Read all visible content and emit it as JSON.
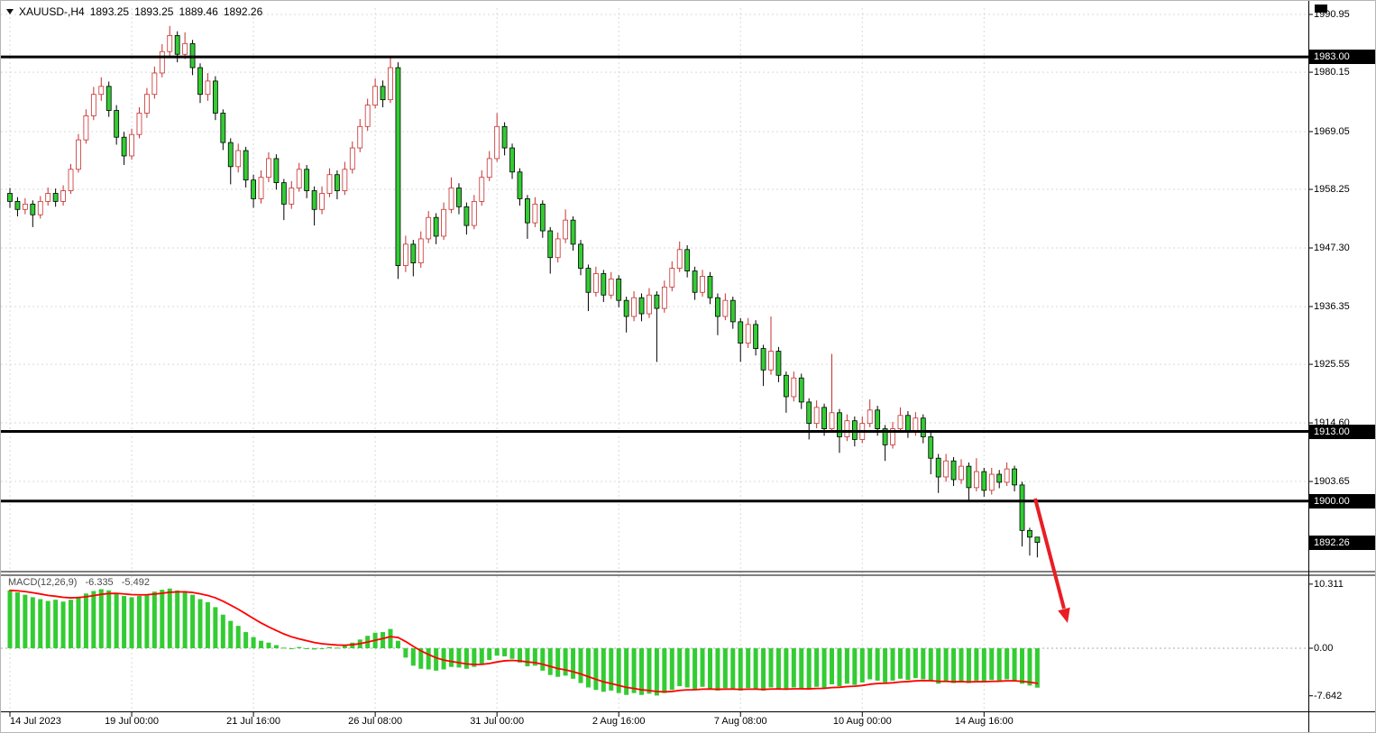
{
  "window": {
    "symbol_info": {
      "symbol": "XAUUSD-,H4",
      "open": "1893.25",
      "high": "1893.25",
      "low": "1889.46",
      "close": "1892.26"
    }
  },
  "macd_panel": {
    "name": "MACD(12,26,9)",
    "main_value": "-6.335",
    "signal_value": "-5.492",
    "axis": [
      {
        "v": 10.311,
        "label": "10.311"
      },
      {
        "v": 0,
        "label": "0.00"
      },
      {
        "v": -7.642,
        "label": "-7.642"
      }
    ]
  },
  "colors": {
    "bull_fill": "#ffffff",
    "bull_edge": "#c62f2f",
    "bear_fill": "#33cc33",
    "bear_edge": "#000000",
    "hline": "#000000",
    "macd_hist": "#33cc33",
    "macd_signal": "#ff0000",
    "arrow": "#e81e25",
    "grid": "#d9d9d9",
    "zero_line": "#a9a9a9",
    "axis_text": "#000000"
  },
  "chart_data": {
    "type": "candlestick",
    "symbol": "XAUUSD-",
    "timeframe": "H4",
    "title": "XAUUSD- H4 candlestick chart with MACD(12,26,9)",
    "y_axis_ticks": [
      1990.95,
      1980.15,
      1969.05,
      1958.25,
      1947.3,
      1936.35,
      1925.55,
      1914.6,
      1903.65
    ],
    "y_range_visible": [
      1887.0,
      1992.2
    ],
    "hlines": [
      1983.0,
      1913.0,
      1900.0
    ],
    "current_price": 1892.26,
    "x_ticks": [
      {
        "index": 0,
        "label": "14 Jul 2023"
      },
      {
        "index": 16,
        "label": "19 Jul 00:00"
      },
      {
        "index": 32,
        "label": "21 Jul 16:00"
      },
      {
        "index": 48,
        "label": "26 Jul 08:00"
      },
      {
        "index": 64,
        "label": "31 Jul 00:00"
      },
      {
        "index": 80,
        "label": "2 Aug 16:00"
      },
      {
        "index": 96,
        "label": "7 Aug 08:00"
      },
      {
        "index": 112,
        "label": "10 Aug 00:00"
      },
      {
        "index": 128,
        "label": "14 Aug 16:00"
      }
    ],
    "ohlc": [
      [
        1957.5,
        1958.5,
        1954.8,
        1956.0
      ],
      [
        1956.0,
        1956.8,
        1953.2,
        1954.5
      ],
      [
        1954.5,
        1956.6,
        1953.6,
        1955.5
      ],
      [
        1955.5,
        1956.2,
        1951.2,
        1953.5
      ],
      [
        1953.5,
        1957.0,
        1952.8,
        1956.0
      ],
      [
        1956.0,
        1958.6,
        1955.2,
        1957.5
      ],
      [
        1957.5,
        1958.4,
        1955.0,
        1956.0
      ],
      [
        1956.0,
        1959.0,
        1955.2,
        1958.0
      ],
      [
        1958.0,
        1963.0,
        1957.4,
        1962.0
      ],
      [
        1962.0,
        1968.6,
        1961.4,
        1967.5
      ],
      [
        1967.5,
        1973.2,
        1966.8,
        1972.0
      ],
      [
        1972.0,
        1977.4,
        1971.2,
        1976.0
      ],
      [
        1976.0,
        1979.2,
        1974.8,
        1977.5
      ],
      [
        1977.5,
        1978.4,
        1971.8,
        1973.0
      ],
      [
        1973.0,
        1974.0,
        1966.6,
        1968.0
      ],
      [
        1968.0,
        1969.0,
        1962.8,
        1964.5
      ],
      [
        1964.5,
        1969.6,
        1963.8,
        1968.5
      ],
      [
        1968.5,
        1973.6,
        1967.8,
        1972.5
      ],
      [
        1972.5,
        1977.2,
        1971.6,
        1976.0
      ],
      [
        1976.0,
        1981.2,
        1975.2,
        1980.0
      ],
      [
        1980.0,
        1985.4,
        1979.2,
        1984.0
      ],
      [
        1984.0,
        1988.8,
        1983.2,
        1987.0
      ],
      [
        1987.0,
        1987.8,
        1982.0,
        1983.5
      ],
      [
        1983.5,
        1987.6,
        1982.6,
        1985.5
      ],
      [
        1985.5,
        1986.2,
        1979.6,
        1981.0
      ],
      [
        1981.0,
        1981.8,
        1974.4,
        1976.0
      ],
      [
        1976.0,
        1980.0,
        1974.8,
        1978.5
      ],
      [
        1978.5,
        1979.4,
        1971.2,
        1972.5
      ],
      [
        1972.5,
        1973.2,
        1965.6,
        1967.0
      ],
      [
        1967.0,
        1967.8,
        1959.2,
        1962.5
      ],
      [
        1962.5,
        1966.8,
        1961.4,
        1965.5
      ],
      [
        1965.5,
        1966.2,
        1958.6,
        1960.0
      ],
      [
        1960.0,
        1961.0,
        1954.8,
        1956.5
      ],
      [
        1956.5,
        1961.8,
        1955.6,
        1960.5
      ],
      [
        1960.5,
        1965.2,
        1959.6,
        1964.0
      ],
      [
        1964.0,
        1964.8,
        1958.2,
        1959.5
      ],
      [
        1959.5,
        1960.2,
        1952.5,
        1955.5
      ],
      [
        1955.5,
        1959.8,
        1954.6,
        1958.5
      ],
      [
        1958.5,
        1963.2,
        1957.8,
        1962.0
      ],
      [
        1962.0,
        1962.8,
        1956.6,
        1958.0
      ],
      [
        1958.0,
        1958.8,
        1951.5,
        1954.5
      ],
      [
        1954.5,
        1958.8,
        1953.6,
        1957.5
      ],
      [
        1957.5,
        1962.2,
        1956.8,
        1961.0
      ],
      [
        1961.0,
        1961.8,
        1956.4,
        1958.0
      ],
      [
        1958.0,
        1963.4,
        1957.2,
        1962.0
      ],
      [
        1962.0,
        1967.2,
        1961.2,
        1966.0
      ],
      [
        1966.0,
        1971.4,
        1965.2,
        1970.0
      ],
      [
        1970.0,
        1975.2,
        1969.2,
        1974.0
      ],
      [
        1974.0,
        1979.0,
        1973.4,
        1977.5
      ],
      [
        1977.5,
        1978.6,
        1973.6,
        1975.0
      ],
      [
        1975.0,
        1983.2,
        1974.4,
        1981.0
      ],
      [
        1981.0,
        1982.0,
        1941.5,
        1944.0
      ],
      [
        1944.0,
        1949.6,
        1942.8,
        1948.0
      ],
      [
        1948.0,
        1948.8,
        1942.0,
        1944.5
      ],
      [
        1944.5,
        1950.4,
        1943.6,
        1949.0
      ],
      [
        1949.0,
        1954.2,
        1948.2,
        1953.0
      ],
      [
        1953.0,
        1953.8,
        1948.0,
        1949.5
      ],
      [
        1949.5,
        1955.8,
        1948.8,
        1954.5
      ],
      [
        1954.5,
        1960.5,
        1953.8,
        1958.5
      ],
      [
        1958.5,
        1959.4,
        1953.6,
        1955.0
      ],
      [
        1955.0,
        1955.8,
        1949.8,
        1951.5
      ],
      [
        1951.5,
        1957.2,
        1950.8,
        1956.0
      ],
      [
        1956.0,
        1961.8,
        1955.2,
        1960.5
      ],
      [
        1960.5,
        1965.4,
        1959.8,
        1964.0
      ],
      [
        1964.0,
        1972.5,
        1963.4,
        1970.0
      ],
      [
        1970.0,
        1970.8,
        1964.6,
        1966.0
      ],
      [
        1966.0,
        1966.8,
        1960.2,
        1961.5
      ],
      [
        1961.5,
        1962.2,
        1955.2,
        1956.5
      ],
      [
        1956.5,
        1957.2,
        1949.0,
        1952.0
      ],
      [
        1952.0,
        1956.8,
        1951.2,
        1955.5
      ],
      [
        1955.5,
        1956.2,
        1949.2,
        1950.5
      ],
      [
        1950.5,
        1951.2,
        1942.5,
        1945.5
      ],
      [
        1945.5,
        1950.2,
        1944.6,
        1949.0
      ],
      [
        1949.0,
        1954.5,
        1948.2,
        1952.5
      ],
      [
        1952.5,
        1953.2,
        1946.8,
        1948.0
      ],
      [
        1948.0,
        1948.8,
        1942.2,
        1943.5
      ],
      [
        1943.5,
        1944.2,
        1935.5,
        1939.0
      ],
      [
        1939.0,
        1943.8,
        1938.2,
        1942.5
      ],
      [
        1942.5,
        1943.2,
        1937.2,
        1938.5
      ],
      [
        1938.5,
        1942.8,
        1937.8,
        1941.5
      ],
      [
        1941.5,
        1942.2,
        1936.2,
        1937.5
      ],
      [
        1937.5,
        1938.2,
        1931.5,
        1934.5
      ],
      [
        1934.5,
        1939.2,
        1933.6,
        1938.0
      ],
      [
        1938.0,
        1938.8,
        1933.6,
        1935.0
      ],
      [
        1935.0,
        1939.8,
        1934.2,
        1938.5
      ],
      [
        1938.5,
        1939.2,
        1926.0,
        1936.0
      ],
      [
        1936.0,
        1941.2,
        1935.2,
        1940.0
      ],
      [
        1940.0,
        1944.8,
        1939.2,
        1943.5
      ],
      [
        1943.5,
        1948.5,
        1942.8,
        1947.0
      ],
      [
        1947.0,
        1947.8,
        1941.8,
        1943.0
      ],
      [
        1943.0,
        1943.8,
        1937.6,
        1939.0
      ],
      [
        1939.0,
        1943.2,
        1938.2,
        1942.0
      ],
      [
        1942.0,
        1942.8,
        1936.8,
        1938.0
      ],
      [
        1938.0,
        1938.8,
        1931.0,
        1934.5
      ],
      [
        1934.5,
        1938.8,
        1933.8,
        1937.5
      ],
      [
        1937.5,
        1938.2,
        1932.2,
        1933.5
      ],
      [
        1933.5,
        1934.2,
        1926.0,
        1929.5
      ],
      [
        1929.5,
        1934.2,
        1928.6,
        1933.0
      ],
      [
        1933.0,
        1933.8,
        1927.2,
        1928.5
      ],
      [
        1928.5,
        1929.2,
        1921.5,
        1924.5
      ],
      [
        1924.5,
        1934.5,
        1923.6,
        1928.0
      ],
      [
        1928.0,
        1928.8,
        1922.2,
        1923.5
      ],
      [
        1923.5,
        1924.2,
        1916.5,
        1919.5
      ],
      [
        1919.5,
        1924.2,
        1918.6,
        1923.0
      ],
      [
        1923.0,
        1923.8,
        1917.2,
        1918.5
      ],
      [
        1918.5,
        1919.2,
        1911.5,
        1914.5
      ],
      [
        1914.5,
        1918.8,
        1913.6,
        1917.5
      ],
      [
        1917.5,
        1918.2,
        1912.2,
        1913.5
      ],
      [
        1913.5,
        1927.5,
        1912.8,
        1916.5
      ],
      [
        1916.5,
        1917.2,
        1909.0,
        1912.0
      ],
      [
        1912.0,
        1916.2,
        1911.2,
        1915.0
      ],
      [
        1915.0,
        1915.8,
        1910.2,
        1911.5
      ],
      [
        1911.5,
        1915.8,
        1910.8,
        1914.5
      ],
      [
        1914.5,
        1919.0,
        1913.8,
        1917.0
      ],
      [
        1917.0,
        1917.8,
        1912.2,
        1913.5
      ],
      [
        1913.5,
        1914.2,
        1907.5,
        1910.5
      ],
      [
        1910.5,
        1914.8,
        1909.8,
        1913.5
      ],
      [
        1913.5,
        1917.5,
        1912.8,
        1916.0
      ],
      [
        1916.0,
        1916.8,
        1911.8,
        1913.0
      ],
      [
        1913.0,
        1916.6,
        1912.2,
        1915.5
      ],
      [
        1915.5,
        1916.2,
        1910.8,
        1912.0
      ],
      [
        1912.0,
        1912.8,
        1905.0,
        1908.0
      ],
      [
        1908.0,
        1908.8,
        1901.5,
        1904.5
      ],
      [
        1904.5,
        1908.8,
        1903.6,
        1907.5
      ],
      [
        1907.5,
        1908.2,
        1902.8,
        1904.0
      ],
      [
        1904.0,
        1907.8,
        1903.2,
        1906.5
      ],
      [
        1906.5,
        1907.2,
        1900.1,
        1902.5
      ],
      [
        1902.5,
        1908.0,
        1901.8,
        1905.5
      ],
      [
        1905.5,
        1906.2,
        1900.8,
        1902.0
      ],
      [
        1902.0,
        1906.2,
        1901.2,
        1905.0
      ],
      [
        1905.0,
        1905.8,
        1902.4,
        1903.5
      ],
      [
        1903.5,
        1907.2,
        1902.8,
        1906.0
      ],
      [
        1906.0,
        1906.6,
        1901.8,
        1903.0
      ],
      [
        1903.0,
        1903.6,
        1891.5,
        1894.5
      ],
      [
        1894.5,
        1895.0,
        1889.8,
        1893.25
      ],
      [
        1893.25,
        1893.25,
        1889.46,
        1892.26
      ]
    ],
    "macd": {
      "params": [
        12,
        26,
        9
      ],
      "last_main": -6.335,
      "last_signal": -5.492,
      "axis_values": [
        10.311,
        0,
        -7.642
      ],
      "histogram": [
        9.3,
        9.0,
        8.6,
        8.2,
        7.9,
        7.6,
        7.8,
        7.5,
        7.8,
        8.3,
        8.8,
        9.2,
        9.5,
        9.3,
        8.9,
        8.4,
        8.2,
        8.4,
        8.7,
        9.1,
        9.4,
        9.6,
        9.3,
        9.1,
        8.6,
        7.9,
        7.4,
        6.6,
        5.4,
        4.4,
        3.6,
        2.6,
        1.8,
        1.2,
        0.9,
        0.5,
        0.1,
        0.0,
        0.2,
        0.0,
        -0.2,
        -0.1,
        0.2,
        0.1,
        0.4,
        0.9,
        1.4,
        2.0,
        2.5,
        2.6,
        3.1,
        1.2,
        -1.5,
        -2.8,
        -3.3,
        -3.4,
        -3.6,
        -3.4,
        -3.0,
        -3.1,
        -3.3,
        -3.0,
        -2.5,
        -1.9,
        -1.2,
        -1.3,
        -1.7,
        -2.3,
        -2.9,
        -2.8,
        -3.6,
        -4.3,
        -4.6,
        -4.4,
        -4.9,
        -5.6,
        -6.3,
        -6.7,
        -7.0,
        -6.8,
        -7.2,
        -7.5,
        -7.2,
        -7.5,
        -7.3,
        -7.6,
        -7.2,
        -6.7,
        -6.1,
        -6.3,
        -6.6,
        -6.2,
        -6.5,
        -6.8,
        -6.4,
        -6.6,
        -6.8,
        -6.4,
        -6.6,
        -6.8,
        -6.3,
        -6.5,
        -6.7,
        -6.3,
        -6.5,
        -6.6,
        -6.2,
        -6.4,
        -5.8,
        -6.1,
        -5.7,
        -5.9,
        -5.5,
        -5.0,
        -5.2,
        -5.5,
        -5.2,
        -4.9,
        -5.1,
        -4.8,
        -5.0,
        -5.3,
        -5.7,
        -5.4,
        -5.6,
        -5.3,
        -5.6,
        -5.2,
        -5.4,
        -5.1,
        -5.2,
        -5.0,
        -5.2,
        -5.7,
        -6.0,
        -6.335
      ]
    },
    "annotations": [
      {
        "type": "arrow",
        "color": "#e81e25",
        "note": "red arrow pointing down-right below the 1900.00 level at the latest bars"
      }
    ]
  }
}
